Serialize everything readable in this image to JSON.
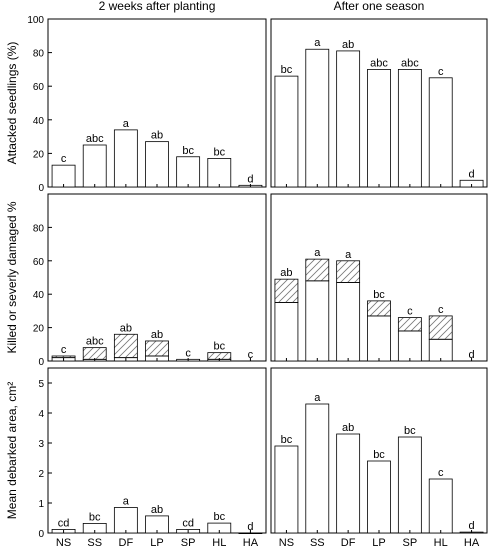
{
  "chart_data": [
    {
      "type": "bar",
      "column_title": "2 weeks after planting",
      "ylabel": "Attacked seedlings (%)",
      "categories": [
        "NS",
        "SS",
        "DF",
        "LP",
        "SP",
        "HL",
        "HA"
      ],
      "ylim": [
        0,
        100
      ],
      "yticks": [
        "0",
        "20",
        "40",
        "60",
        "80",
        "100"
      ],
      "values": [
        13,
        25,
        34,
        27,
        18,
        17,
        1
      ],
      "letters": [
        "c",
        "abc",
        "a",
        "ab",
        "bc",
        "bc",
        "d"
      ]
    },
    {
      "type": "bar",
      "column_title": "After one season",
      "ylabel": "",
      "categories": [
        "NS",
        "SS",
        "DF",
        "LP",
        "SP",
        "HL",
        "HA"
      ],
      "ylim": [
        0,
        100
      ],
      "yticks": [],
      "values": [
        66,
        82,
        81,
        70,
        70,
        65,
        4
      ],
      "letters": [
        "bc",
        "a",
        "ab",
        "abc",
        "abc",
        "c",
        "d"
      ]
    },
    {
      "type": "bar",
      "stacked": true,
      "ylabel": "Killed or severly damaged %",
      "categories": [
        "NS",
        "SS",
        "DF",
        "LP",
        "SP",
        "HL",
        "HA"
      ],
      "ylim": [
        0,
        100
      ],
      "yticks": [
        "0",
        "20",
        "40",
        "60",
        "80"
      ],
      "series": [
        {
          "pattern": "plain",
          "values": [
            2,
            1,
            2,
            3,
            1,
            1,
            0
          ]
        },
        {
          "pattern": "hatched",
          "values": [
            1,
            7,
            14,
            9,
            0,
            4,
            0
          ]
        }
      ],
      "letters": [
        "c",
        "abc",
        "ab",
        "ab",
        "c",
        "bc",
        "c"
      ]
    },
    {
      "type": "bar",
      "stacked": true,
      "ylabel": "",
      "categories": [
        "NS",
        "SS",
        "DF",
        "LP",
        "SP",
        "HL",
        "HA"
      ],
      "ylim": [
        0,
        100
      ],
      "yticks": [],
      "series": [
        {
          "pattern": "plain",
          "values": [
            35,
            48,
            47,
            27,
            18,
            13,
            0
          ]
        },
        {
          "pattern": "hatched",
          "values": [
            14,
            13,
            13,
            9,
            8,
            14,
            0
          ]
        }
      ],
      "letters": [
        "ab",
        "a",
        "a",
        "bc",
        "c",
        "c",
        "d"
      ]
    },
    {
      "type": "bar",
      "ylabel": "Mean debarked area, cm²",
      "categories": [
        "NS",
        "SS",
        "DF",
        "LP",
        "SP",
        "HL",
        "HA"
      ],
      "xticklabels": [
        "NS",
        "SS",
        "DF",
        "LP",
        "SP",
        "HL",
        "HA"
      ],
      "ylim": [
        0,
        5.5
      ],
      "yticks": [
        "0",
        "1",
        "2",
        "3",
        "4",
        "5"
      ],
      "values": [
        0.12,
        0.32,
        0.85,
        0.57,
        0.12,
        0.33,
        0.0
      ],
      "letters": [
        "cd",
        "bc",
        "a",
        "ab",
        "cd",
        "bc",
        "d"
      ]
    },
    {
      "type": "bar",
      "ylabel": "",
      "categories": [
        "NS",
        "SS",
        "DF",
        "LP",
        "SP",
        "HL",
        "HA"
      ],
      "xticklabels": [
        "NS",
        "SS",
        "DF",
        "LP",
        "SP",
        "HL",
        "HA"
      ],
      "ylim": [
        0,
        5.5
      ],
      "yticks": [],
      "values": [
        2.9,
        4.3,
        3.3,
        2.4,
        3.2,
        1.8,
        0.03
      ],
      "letters": [
        "bc",
        "a",
        "ab",
        "bc",
        "bc",
        "c",
        "d"
      ]
    }
  ]
}
